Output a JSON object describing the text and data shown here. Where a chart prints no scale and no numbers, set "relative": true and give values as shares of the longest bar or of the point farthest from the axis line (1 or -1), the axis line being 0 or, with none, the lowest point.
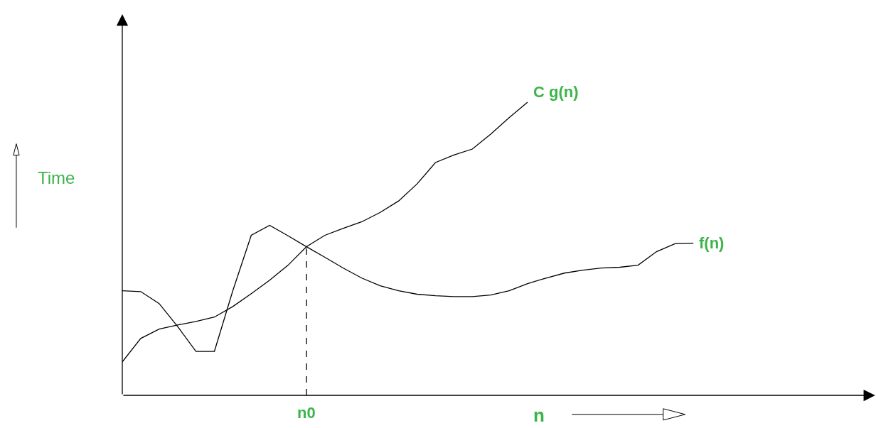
{
  "chart_data": {
    "type": "line",
    "relative": true,
    "xlabel": "n",
    "ylabel": "Time",
    "legend": false,
    "marker": "none",
    "categories": [
      null,
      null,
      null,
      null,
      null,
      null,
      null,
      null,
      null,
      null,
      null,
      null,
      null,
      null,
      null,
      null,
      null,
      null,
      null,
      null,
      null,
      null,
      null,
      null,
      null,
      null,
      null,
      null,
      null,
      null,
      null,
      null
    ],
    "ref_lines": [
      {
        "axis": "x",
        "label": "n0",
        "line_style": "dashed",
        "color": "#000000"
      }
    ],
    "series": [
      {
        "name": "C g(n)",
        "color": "#000000",
        "values": [
          0.114,
          0.194,
          0.226,
          0.24,
          0.252,
          0.267,
          0.303,
          0.347,
          0.393,
          0.444,
          0.507,
          0.546,
          0.57,
          0.592,
          0.624,
          0.663,
          0.721,
          0.794,
          0.82,
          0.84,
          0.891,
          0.947,
          1.0,
          null,
          null,
          null,
          null,
          null,
          null,
          null,
          null,
          null
        ]
      },
      {
        "name": "f(n)",
        "color": "#000000",
        "values": [
          0.357,
          0.354,
          0.313,
          0.235,
          0.15,
          0.15,
          0.357,
          0.546,
          0.58,
          0.544,
          0.507,
          0.471,
          0.434,
          0.4,
          0.374,
          0.357,
          0.345,
          0.34,
          0.337,
          0.337,
          0.342,
          0.357,
          0.381,
          0.4,
          0.417,
          0.427,
          0.434,
          0.437,
          0.444,
          0.49,
          0.517,
          0.519
        ]
      }
    ]
  }
}
